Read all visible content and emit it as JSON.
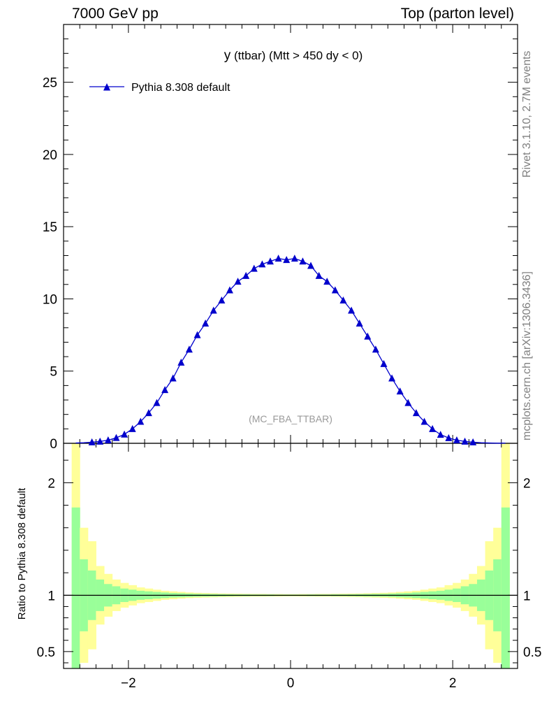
{
  "header": {
    "left": "7000 GeV pp",
    "right": "Top (parton level)"
  },
  "side_labels": {
    "rivet": "Rivet 3.1.10,  2.7M events",
    "mcplots": "mcplots.cern.ch [arXiv:1306.3436]"
  },
  "chart_data": {
    "type": "line",
    "title_main": "y",
    "title_rest": " (ttbar) (Mtt > 450 dy < 0)",
    "watermark": "(MC_FBA_TTBAR)",
    "xlabel": "",
    "ylabel": "",
    "ratio_ylabel": "Ratio to Pythia 8.308 default",
    "xlim": [
      -2.8,
      2.8
    ],
    "ylim": [
      0,
      29
    ],
    "ratio_ylim": [
      0.35,
      2.35
    ],
    "x_ticks": [
      -2,
      0,
      2
    ],
    "x_tick_labels": [
      "−2",
      "0",
      "2"
    ],
    "y_ticks": [
      0,
      5,
      10,
      15,
      20,
      25
    ],
    "y_tick_labels": [
      "0",
      "5",
      "10",
      "15",
      "20",
      "25"
    ],
    "ratio_y_ticks": [
      0.5,
      1,
      2
    ],
    "ratio_y_tick_labels": [
      "0.5",
      "1",
      "2"
    ],
    "legend": {
      "position": "top-left",
      "label": "Pythia 8.308 default"
    },
    "colors": {
      "series": "#0000cc",
      "band_inner": "#99ff99",
      "band_outer": "#ffff99"
    },
    "series": [
      {
        "name": "Pythia 8.308 default",
        "x": [
          -2.65,
          -2.55,
          -2.45,
          -2.35,
          -2.25,
          -2.15,
          -2.05,
          -1.95,
          -1.85,
          -1.75,
          -1.65,
          -1.55,
          -1.45,
          -1.35,
          -1.25,
          -1.15,
          -1.05,
          -0.95,
          -0.85,
          -0.75,
          -0.65,
          -0.55,
          -0.45,
          -0.35,
          -0.25,
          -0.15,
          -0.05,
          0.05,
          0.15,
          0.25,
          0.35,
          0.45,
          0.55,
          0.65,
          0.75,
          0.85,
          0.95,
          1.05,
          1.15,
          1.25,
          1.35,
          1.45,
          1.55,
          1.65,
          1.75,
          1.85,
          1.95,
          2.05,
          2.15,
          2.25,
          2.35,
          2.45,
          2.55,
          2.65
        ],
        "values": [
          0.02,
          0.04,
          0.08,
          0.13,
          0.22,
          0.38,
          0.62,
          1.0,
          1.5,
          2.1,
          2.8,
          3.7,
          4.5,
          5.6,
          6.5,
          7.5,
          8.3,
          9.2,
          9.9,
          10.6,
          11.2,
          11.6,
          12.1,
          12.4,
          12.6,
          12.8,
          12.7,
          12.8,
          12.6,
          12.3,
          11.6,
          11.2,
          10.6,
          9.9,
          9.2,
          8.3,
          7.4,
          6.5,
          5.5,
          4.5,
          3.6,
          2.8,
          2.1,
          1.5,
          1.0,
          0.6,
          0.37,
          0.22,
          0.13,
          0.08,
          0.04,
          0.02,
          0.01,
          0.01
        ]
      }
    ],
    "ratio_bands": {
      "edges": [
        -2.7,
        -2.6,
        -2.5,
        -2.4,
        -2.3,
        -2.2,
        -2.1,
        -2.0,
        -1.9,
        -1.8,
        -1.7,
        -1.6,
        -1.5,
        -1.4,
        -1.3,
        -1.2,
        -1.1,
        -1.0,
        -0.9,
        -0.8,
        -0.7,
        -0.6,
        -0.5,
        -0.4,
        -0.3,
        -0.2,
        -0.1,
        0.0,
        0.1,
        0.2,
        0.3,
        0.4,
        0.5,
        0.6,
        0.7,
        0.8,
        0.9,
        1.0,
        1.1,
        1.2,
        1.3,
        1.4,
        1.5,
        1.6,
        1.7,
        1.8,
        1.9,
        2.0,
        2.1,
        2.2,
        2.3,
        2.4,
        2.5,
        2.6,
        2.7
      ],
      "inner_half_width": [
        0.78,
        0.32,
        0.22,
        0.14,
        0.1,
        0.08,
        0.06,
        0.05,
        0.04,
        0.035,
        0.03,
        0.025,
        0.02,
        0.018,
        0.015,
        0.013,
        0.012,
        0.011,
        0.01,
        0.009,
        0.008,
        0.008,
        0.007,
        0.007,
        0.007,
        0.006,
        0.006,
        0.006,
        0.006,
        0.007,
        0.007,
        0.007,
        0.008,
        0.008,
        0.009,
        0.01,
        0.011,
        0.012,
        0.013,
        0.015,
        0.018,
        0.02,
        0.025,
        0.03,
        0.035,
        0.04,
        0.05,
        0.06,
        0.08,
        0.1,
        0.14,
        0.22,
        0.32,
        0.78
      ],
      "outer_half_width": [
        1.6,
        0.6,
        0.48,
        0.26,
        0.19,
        0.14,
        0.11,
        0.09,
        0.07,
        0.06,
        0.05,
        0.04,
        0.035,
        0.03,
        0.025,
        0.022,
        0.02,
        0.018,
        0.016,
        0.015,
        0.014,
        0.013,
        0.012,
        0.012,
        0.011,
        0.011,
        0.01,
        0.01,
        0.011,
        0.011,
        0.012,
        0.012,
        0.013,
        0.014,
        0.015,
        0.016,
        0.018,
        0.02,
        0.022,
        0.025,
        0.03,
        0.035,
        0.04,
        0.05,
        0.06,
        0.07,
        0.09,
        0.11,
        0.14,
        0.19,
        0.26,
        0.48,
        0.6,
        1.6
      ]
    }
  }
}
